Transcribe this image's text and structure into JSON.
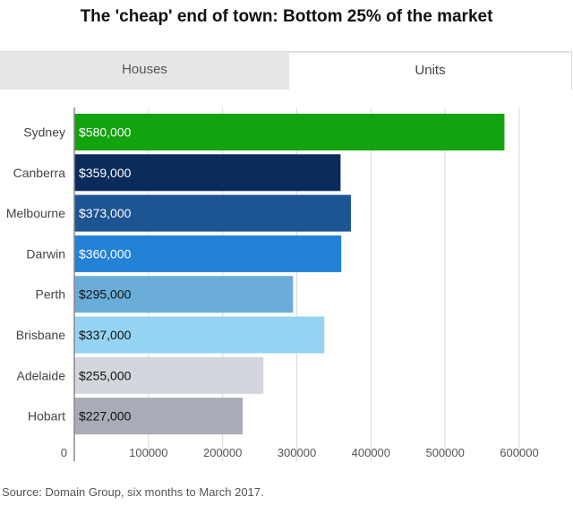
{
  "title": "The 'cheap' end of town: Bottom 25% of the market",
  "tabs": [
    {
      "label": "Houses",
      "active": false
    },
    {
      "label": "Units",
      "active": true
    }
  ],
  "source": "Source: Domain Group, six months to March 2017.",
  "chart_data": {
    "type": "bar",
    "orientation": "horizontal",
    "categories": [
      "Sydney",
      "Canberra",
      "Melbourne",
      "Darwin",
      "Perth",
      "Brisbane",
      "Adelaide",
      "Hobart"
    ],
    "values": [
      580000,
      359000,
      373000,
      360000,
      295000,
      337000,
      255000,
      227000
    ],
    "data_labels": [
      "$580,000",
      "$359,000",
      "$373,000",
      "$360,000",
      "$295,000",
      "$337,000",
      "$255,000",
      "$227,000"
    ],
    "colors": [
      "#12a30f",
      "#0a2b5c",
      "#1d5493",
      "#2381d6",
      "#6aadd9",
      "#95d3f2",
      "#d3d6dc",
      "#a8acb6"
    ],
    "label_colors": [
      "#ffffff",
      "#ffffff",
      "#ffffff",
      "#ffffff",
      "#111111",
      "#111111",
      "#111111",
      "#111111"
    ],
    "xticks": [
      0,
      100000,
      200000,
      300000,
      400000,
      500000,
      600000
    ],
    "xlim": [
      0,
      600000
    ],
    "grid": true,
    "title": "The 'cheap' end of town: Bottom 25% of the market",
    "xlabel": "",
    "ylabel": ""
  }
}
